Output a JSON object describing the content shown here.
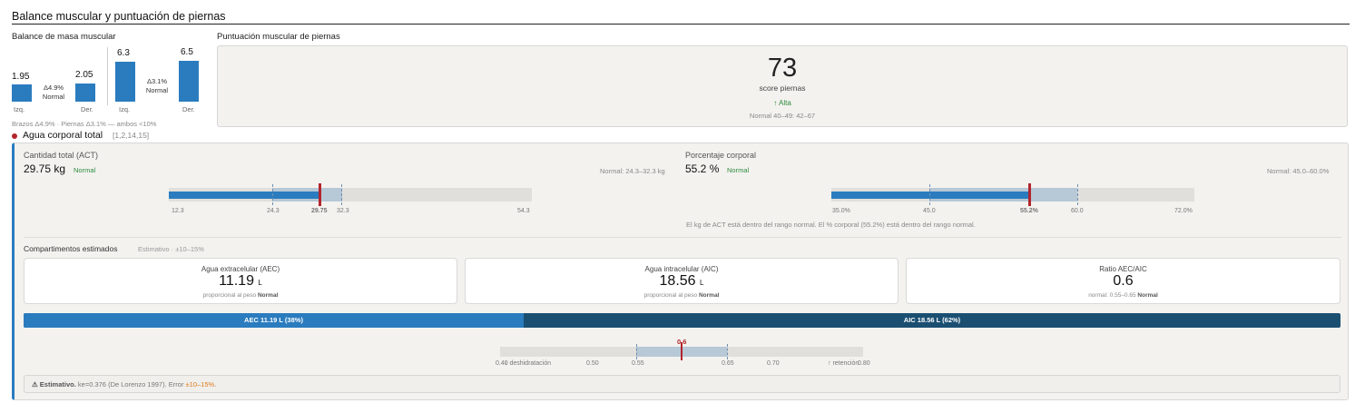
{
  "header": {
    "title": "Balance muscular y puntuación de piernas"
  },
  "muscle_balance": {
    "title": "Balance de masa muscular",
    "arms": {
      "left_value": "1.95",
      "left_label": "Izq.",
      "right_value": "2.05",
      "right_label": "Der.",
      "delta": "Δ4.9%",
      "status": "Normal"
    },
    "legs": {
      "left_value": "6.3",
      "left_label": "Izq.",
      "right_value": "6.5",
      "right_label": "Der.",
      "delta": "Δ3.1%",
      "status": "Normal"
    },
    "footnote": "Brazos Δ4.9% · Piernas Δ3.1% — ambos <10%"
  },
  "leg_score": {
    "title": "Puntuación muscular de piernas",
    "score": "73",
    "score_label": "score piernas",
    "level": "↑ Alta",
    "normal_range": "Normal 40–49: 42–67"
  },
  "water": {
    "title": "Agua corporal total",
    "refs": "[1,2,14,15]",
    "act": {
      "label": "Cantidad total (ACT)",
      "value": "29.75 kg",
      "status": "Normal",
      "normal": "Normal: 24.3–32.3 kg",
      "fill_fraction": 0.42,
      "ticks": [
        "12.3",
        "24.3",
        "29.75",
        "32.3",
        "54.3"
      ]
    },
    "pct": {
      "label": "Porcentaje corporal",
      "value": "55.2 %",
      "status": "Normal",
      "normal": "Normal: 45.0–60.0%",
      "fill_fraction": 0.545,
      "ticks": [
        "35.0%",
        "45.0",
        "55.2%",
        "60.0",
        "72.0%"
      ]
    },
    "note": "El kg de ACT está dentro del rango normal. El % corporal (55.2%) está dentro del rango normal."
  },
  "compartments": {
    "title": "Compartimentos estimados",
    "subtitle": "Estimativo · ±10–15%",
    "cards": [
      {
        "title": "Agua extracelular (AEC)",
        "value": "11.19",
        "unit": "L",
        "sub": "proporcional al peso",
        "status": "Normal"
      },
      {
        "title": "Agua intracelular (AIC)",
        "value": "18.56",
        "unit": "L",
        "sub": "proporcional al peso",
        "status": "Normal"
      },
      {
        "title": "Ratio AEC/AIC",
        "value": "0.6",
        "unit": "",
        "sub": "normal: 0.55–0.65",
        "status": "Normal"
      }
    ],
    "split": {
      "aec_label": "AEC 11.19 L (38%)",
      "aic_label": "AIC 18.56 L (62%)",
      "aec_fraction": 0.38
    },
    "ratio_scale": {
      "marker": "0.6",
      "ticks": [
        "0.40",
        "0.50",
        "0.55",
        "0.65",
        "0.70",
        "0.80"
      ],
      "low_label": "↓ deshidratación",
      "high_label": "↑ retención"
    }
  },
  "disclaimer": {
    "prefix": "⚠ Estimativo.",
    "text": " ke=0.376 (De Lorenzo 1997). Error ",
    "error": "±10–15%",
    "end": "."
  },
  "colors": {
    "accent": "#2b7cbf",
    "dark": "#1b4f72",
    "marker": "#b3242c",
    "ok": "#2e8b3e"
  }
}
